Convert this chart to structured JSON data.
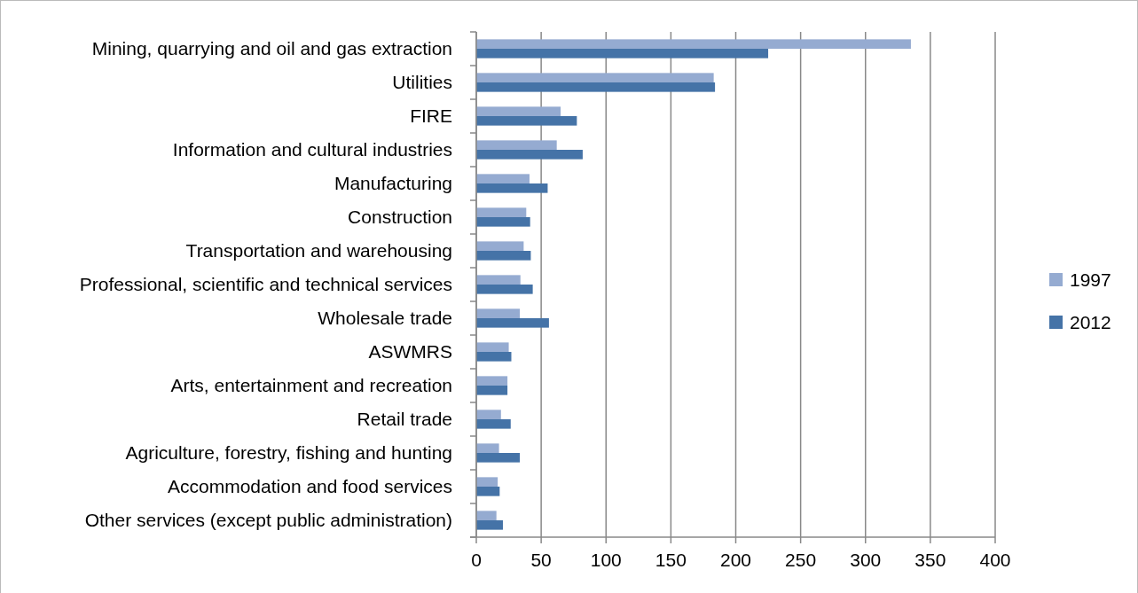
{
  "chart_data": {
    "type": "bar",
    "orientation": "horizontal",
    "categories": [
      "Mining, quarrying and oil and gas extraction",
      "Utilities",
      "FIRE",
      "Information and cultural industries",
      "Manufacturing",
      "Construction",
      "Transportation and warehousing",
      "Professional, scientific and technical services",
      "Wholesale trade",
      "ASWMRS",
      "Arts, entertainment and recreation",
      "Retail trade",
      "Agriculture, forestry, fishing and hunting",
      "Accommodation and food services",
      "Other services (except public administration)"
    ],
    "series": [
      {
        "name": "1997",
        "color": "#95abd1",
        "values": [
          335,
          183,
          65,
          62,
          41,
          38.5,
          36.5,
          34,
          33.5,
          25,
          24,
          19,
          17.5,
          16.5,
          15.5
        ]
      },
      {
        "name": "2012",
        "color": "#4573a7",
        "values": [
          225,
          184,
          77.5,
          82,
          55,
          41.5,
          42,
          43.5,
          56,
          27,
          24,
          26.5,
          33.5,
          18,
          20.5
        ]
      }
    ],
    "xlim": [
      0,
      400
    ],
    "xticks": [
      0,
      50,
      100,
      150,
      200,
      250,
      300,
      350,
      400
    ],
    "grid": "x",
    "legend": "right"
  }
}
